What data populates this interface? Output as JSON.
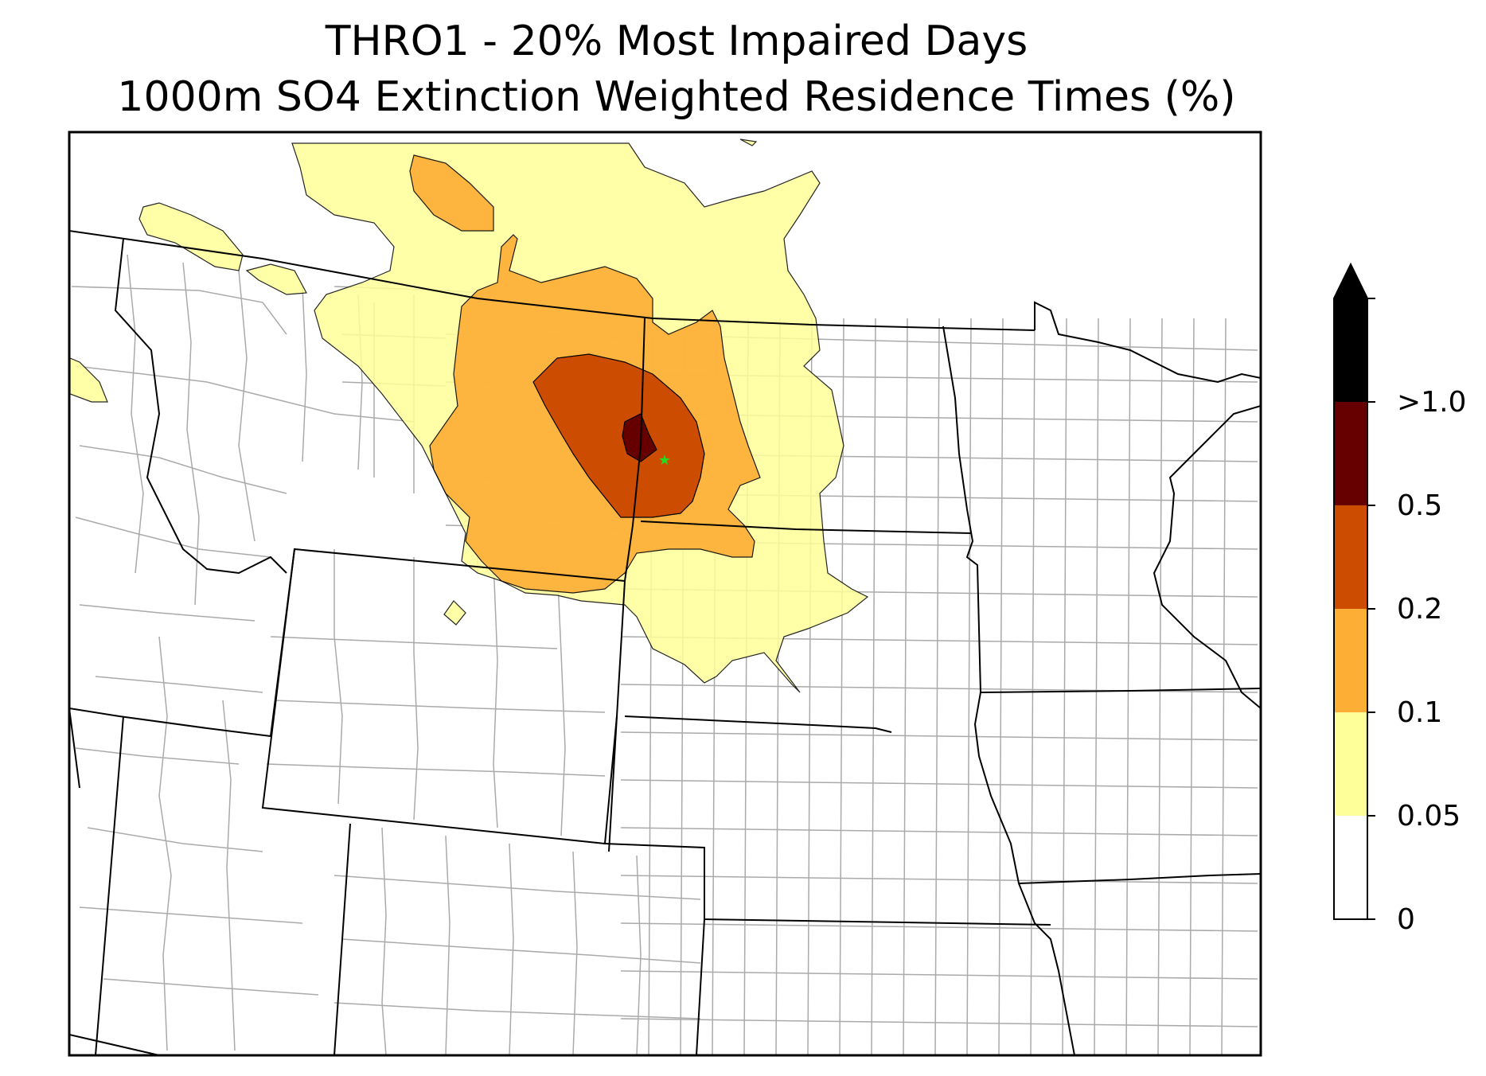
{
  "title": {
    "line1": "THRO1 - 20% Most Impaired Days",
    "line2": "1000m SO4 Extinction Weighted Residence Times (%)"
  },
  "colorbar": {
    "levels": [
      "0",
      "0.05",
      "0.1",
      "0.2",
      "0.5",
      ">1.0"
    ],
    "colors": [
      "#ffffff",
      "#ffff99",
      "#fdae35",
      "#cc4c02",
      "#660000",
      "#000000"
    ],
    "extend": "max"
  },
  "map": {
    "site_marker_color": "#22dd22",
    "contour_colors": {
      "c005": "#ffff99",
      "c01": "#fdae35",
      "c02": "#cc4c02",
      "c05": "#660000"
    },
    "boundary_color": "#000000",
    "county_color": "#aaaaaa"
  }
}
